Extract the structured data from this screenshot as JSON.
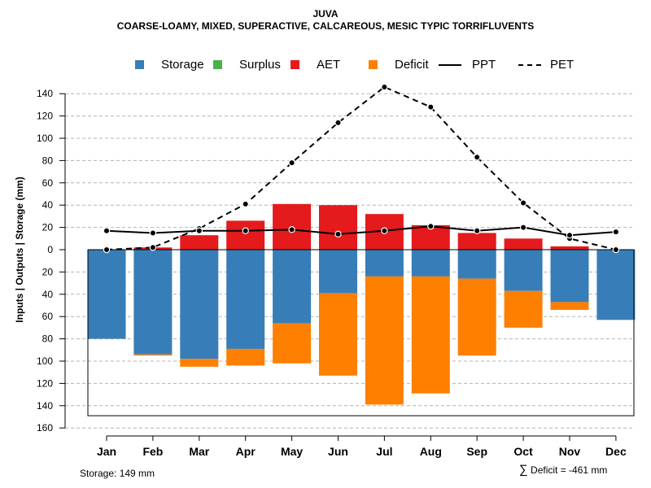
{
  "chart_data": {
    "type": "bar",
    "title": "JUVA",
    "subtitle": "COARSE-LOAMY, MIXED, SUPERACTIVE, CALCAREOUS, MESIC TYPIC TORRIFLUVENTS",
    "ylabel": "Inputs | Outputs | Storage    (mm)",
    "xlabel": "",
    "ylim": [
      -160,
      150
    ],
    "yticks": [
      -160,
      -140,
      -120,
      -100,
      -80,
      -60,
      -40,
      -20,
      0,
      20,
      40,
      60,
      80,
      100,
      120,
      140
    ],
    "ytick_labels": [
      "160",
      "140",
      "120",
      "100",
      "80",
      "60",
      "40",
      "20",
      "0",
      "20",
      "40",
      "60",
      "80",
      "100",
      "120",
      "140"
    ],
    "grid": true,
    "legend_position": "top",
    "categories": [
      "Jan",
      "Feb",
      "Mar",
      "Apr",
      "May",
      "Jun",
      "Jul",
      "Aug",
      "Sep",
      "Oct",
      "Nov",
      "Dec"
    ],
    "legend": [
      {
        "name": "Storage",
        "kind": "box",
        "color": "#377EB8"
      },
      {
        "name": "Surplus",
        "kind": "box",
        "color": "#4DAF4A"
      },
      {
        "name": "AET",
        "kind": "box",
        "color": "#E41A1C"
      },
      {
        "name": "Deficit",
        "kind": "box",
        "color": "#FF7F00"
      },
      {
        "name": "PPT",
        "kind": "solid"
      },
      {
        "name": "PET",
        "kind": "dashed"
      }
    ],
    "series": [
      {
        "name": "AET",
        "color": "#E41A1C",
        "values": [
          0,
          2,
          13,
          26,
          41,
          40,
          32,
          22,
          15,
          10,
          3,
          0
        ]
      },
      {
        "name": "Surplus",
        "color": "#4DAF4A",
        "values": [
          0,
          0,
          0,
          0,
          0,
          0,
          0,
          0,
          0,
          0,
          0,
          0
        ]
      },
      {
        "name": "Storage",
        "color": "#377EB8",
        "values": [
          80,
          94,
          98,
          89,
          66,
          39,
          24,
          24,
          26,
          37,
          47,
          63
        ]
      },
      {
        "name": "Deficit",
        "color": "#FF7F00",
        "values": [
          0,
          1,
          7,
          15,
          36,
          74,
          115,
          105,
          69,
          33,
          7,
          0
        ]
      },
      {
        "name": "PPT",
        "style": "solid",
        "values": [
          17,
          15,
          17,
          17,
          18,
          14,
          17,
          21,
          17,
          20,
          13,
          16
        ]
      },
      {
        "name": "PET",
        "style": "dashed",
        "values": [
          0,
          2,
          19,
          41,
          78,
          114,
          146,
          128,
          83,
          42,
          10,
          0
        ]
      }
    ],
    "storage_box_depth": 149
  },
  "footer": {
    "storage_note": "Storage: 149 mm",
    "deficit_symbol": "∑",
    "deficit_note": "Deficit = -461 mm"
  }
}
